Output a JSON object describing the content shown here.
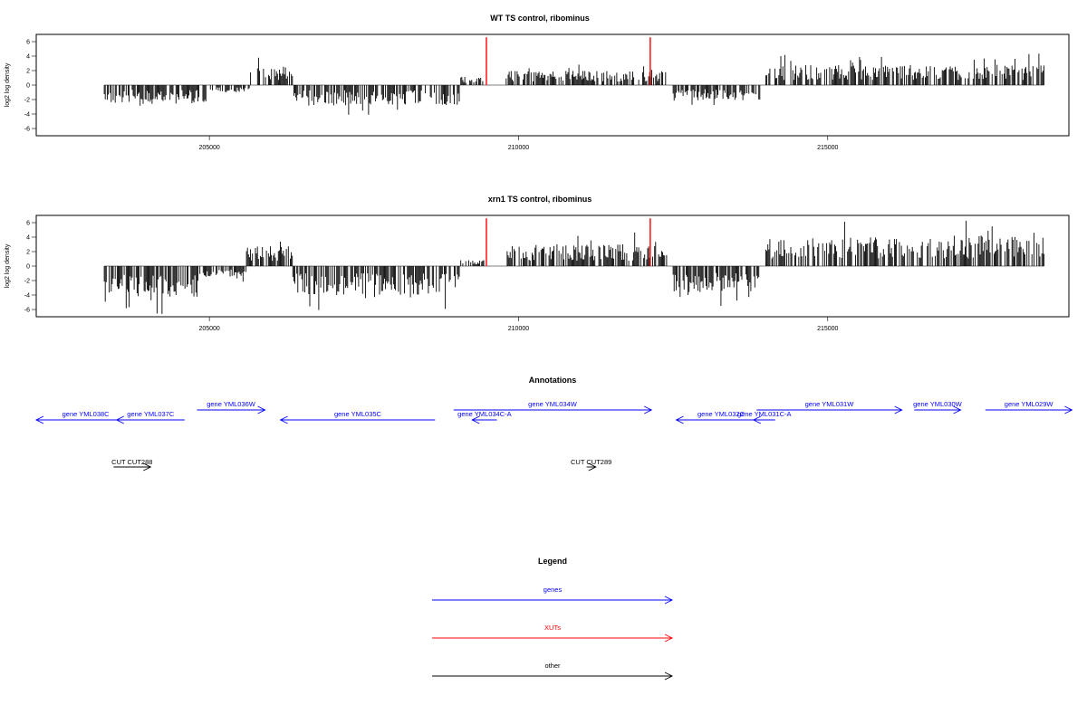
{
  "colors": {
    "gene": "#0000ff",
    "xut": "#ff0000",
    "other": "#000000",
    "bar": "#000000"
  },
  "chart_data": [
    {
      "type": "bar",
      "title": "WT TS control, ribominus",
      "ylabel": "log2 log density",
      "ylim": [
        -7,
        7
      ],
      "yticks": [
        "-6",
        "-4",
        "-2",
        "0",
        "2",
        "4",
        "6"
      ],
      "xlim": [
        202200,
        218900
      ],
      "xticks": [
        "205000",
        "210000",
        "215000"
      ],
      "segments": [
        {
          "x": [
            203300,
            205000
          ],
          "sign": -1,
          "amp": 2.6
        },
        {
          "x": [
            205000,
            205650
          ],
          "sign": -1,
          "amp": 1.0
        },
        {
          "x": [
            205650,
            206350
          ],
          "sign": 1,
          "amp": 2.6
        },
        {
          "x": [
            206350,
            209050
          ],
          "sign": -1,
          "amp": 2.8
        },
        {
          "x": [
            209050,
            209450
          ],
          "sign": 1,
          "amp": 1.2
        },
        {
          "x": [
            209800,
            212400
          ],
          "sign": 1,
          "amp": 2.0
        },
        {
          "x": [
            212500,
            213950
          ],
          "sign": -1,
          "amp": 2.2
        },
        {
          "x": [
            214000,
            218500
          ],
          "sign": 1,
          "amp": 2.8
        }
      ],
      "markers": [
        209480,
        212130
      ]
    },
    {
      "type": "bar",
      "title": "xrn1 TS control, ribominus",
      "ylabel": "log2 log density",
      "ylim": [
        -7,
        7
      ],
      "yticks": [
        "-6",
        "-4",
        "-2",
        "0",
        "2",
        "4",
        "6"
      ],
      "xlim": [
        202200,
        218900
      ],
      "xticks": [
        "205000",
        "210000",
        "215000"
      ],
      "segments": [
        {
          "x": [
            203300,
            204900
          ],
          "sign": -1,
          "amp": 4.3
        },
        {
          "x": [
            204900,
            205600
          ],
          "sign": -1,
          "amp": 1.5
        },
        {
          "x": [
            205600,
            206350
          ],
          "sign": 1,
          "amp": 2.8
        },
        {
          "x": [
            206350,
            209050
          ],
          "sign": -1,
          "amp": 4.0
        },
        {
          "x": [
            209050,
            209450
          ],
          "sign": 1,
          "amp": 0.8
        },
        {
          "x": [
            209800,
            212400
          ],
          "sign": 1,
          "amp": 3.0
        },
        {
          "x": [
            212500,
            213950
          ],
          "sign": -1,
          "amp": 3.6
        },
        {
          "x": [
            214000,
            218500
          ],
          "sign": 1,
          "amp": 4.2
        }
      ],
      "markers": [
        209480,
        212130
      ]
    }
  ],
  "annotations": {
    "title": "Annotations",
    "genes": [
      {
        "label": "gene YML038C",
        "from": 203800,
        "to": 202200,
        "row": 2
      },
      {
        "label": "gene YML037C",
        "from": 204600,
        "to": 203500,
        "row": 2
      },
      {
        "label": "gene YML036W",
        "from": 204800,
        "to": 205900,
        "row": 1
      },
      {
        "label": "gene YML035C",
        "from": 208650,
        "to": 206150,
        "row": 2
      },
      {
        "label": "gene YML034C-A",
        "from": 209650,
        "to": 209250,
        "row": 2
      },
      {
        "label": "gene YML034W",
        "from": 208950,
        "to": 212150,
        "row": 1
      },
      {
        "label": "gene YML032C",
        "from": 214000,
        "to": 212550,
        "row": 2
      },
      {
        "label": "gene YML031C-A",
        "from": 214150,
        "to": 213800,
        "row": 2
      },
      {
        "label": "gene YML031W",
        "from": 213850,
        "to": 216200,
        "row": 1
      },
      {
        "label": "gene YML030W",
        "from": 216400,
        "to": 217150,
        "row": 1
      },
      {
        "label": "gene YML029W",
        "from": 217550,
        "to": 218950,
        "row": 1
      }
    ],
    "others": [
      {
        "label": "CUT CUT288",
        "from": 203450,
        "to": 204050
      },
      {
        "label": "CUT CUT289",
        "from": 211100,
        "to": 211250
      }
    ]
  },
  "legend": {
    "title": "Legend",
    "items": [
      {
        "label": "genes",
        "color": "#0000ff"
      },
      {
        "label": "XUTs",
        "color": "#ff0000"
      },
      {
        "label": "other",
        "color": "#000000"
      }
    ]
  }
}
